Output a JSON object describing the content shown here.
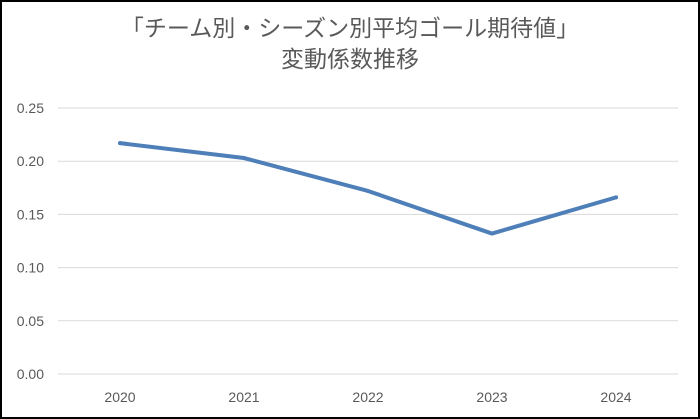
{
  "chart_data": {
    "type": "line",
    "title_lines": [
      "「チーム別・シーズン別平均ゴール期待値」",
      "変動係数推移"
    ],
    "categories": [
      "2020",
      "2021",
      "2022",
      "2023",
      "2024"
    ],
    "series": [
      {
        "values": [
          0.217,
          0.203,
          0.172,
          0.132,
          0.166
        ],
        "color": "#4e7fb8"
      }
    ],
    "yticks": [
      "0.00",
      "0.05",
      "0.10",
      "0.15",
      "0.20",
      "0.25"
    ],
    "ylim": [
      0,
      0.25
    ],
    "grid": true,
    "legend": "none",
    "colors": {
      "grid": "#d9d9d9",
      "text": "#595959",
      "border": "#000000"
    }
  }
}
